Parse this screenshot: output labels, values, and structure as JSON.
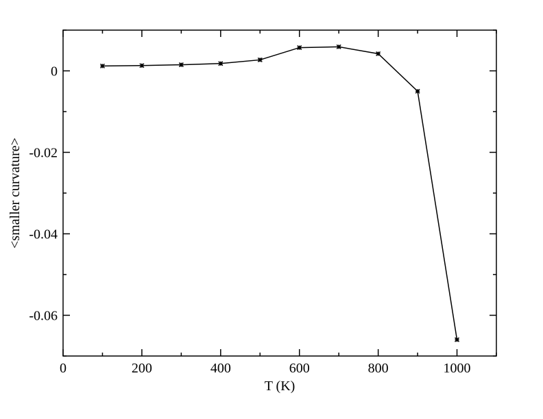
{
  "chart_data": {
    "type": "line",
    "xlabel": "T (K)",
    "ylabel": "<smaller curvature>",
    "x": [
      100,
      200,
      300,
      400,
      500,
      600,
      700,
      800,
      900,
      1000
    ],
    "values": [
      0.0012,
      0.0013,
      0.0015,
      0.0018,
      0.0027,
      0.0057,
      0.0059,
      0.0042,
      -0.005,
      -0.066
    ],
    "color": "#000000",
    "xlim": [
      0,
      1100
    ],
    "xticks": [
      0,
      200,
      400,
      600,
      800,
      1000
    ],
    "xminorticks": [
      100,
      300,
      500,
      700,
      900,
      1100
    ],
    "ylim": [
      -0.07,
      0.01
    ],
    "yticks": [
      -0.06,
      -0.04,
      -0.02,
      0
    ],
    "yminorticks": [
      -0.07,
      -0.05,
      -0.03,
      -0.01,
      0.01
    ],
    "grid": false
  }
}
